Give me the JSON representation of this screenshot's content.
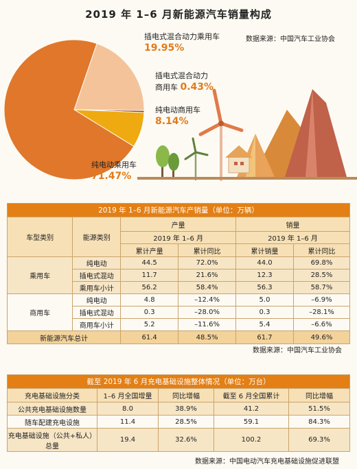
{
  "title": "2019 年 1–6 月新能源汽车销量构成",
  "pie_source": "数据来源：中国汽车工业协会",
  "chart_data": {
    "type": "pie",
    "title": "2019 年 1–6 月新能源汽车销量构成",
    "slices": [
      {
        "label": "纯电动乘用车",
        "pct_label": "71.47%",
        "value": 71.47,
        "color": "#e0772a"
      },
      {
        "label": "插电式混合动力乘用车",
        "pct_label": "19.95%",
        "value": 19.95,
        "color": "#f4c39a"
      },
      {
        "label": "插电式混合动力商用车",
        "pct_label": "0.43%",
        "value": 0.43,
        "color": "#8b3a2b"
      },
      {
        "label": "纯电动商用车",
        "pct_label": "8.14%",
        "value": 8.14,
        "color": "#eeaa10"
      }
    ]
  },
  "pie_labels": {
    "phev_passenger": "插电式混合动力乘用车",
    "phev_commercial_1": "插电式混合动力",
    "phev_commercial_2": "商用车",
    "bev_commercial": "纯电动商用车",
    "bev_passenger": "纯电动乘用车"
  },
  "table1": {
    "title": "2019 年 1–6 月新能源汽车产销量（单位：万辆）",
    "col_type": "车型类别",
    "col_energy": "能源类别",
    "production": "产量",
    "sales": "销量",
    "period": "2019 年 1–6 月",
    "cum_prod": "累计产量",
    "yoy": "累计同比",
    "cum_sales": "累计销量",
    "passenger": "乘用车",
    "commercial": "商用车",
    "rows_passenger": [
      [
        "纯电动",
        "44.5",
        "72.0%",
        "44.0",
        "69.8%"
      ],
      [
        "插电式混动",
        "11.7",
        "21.6%",
        "12.3",
        "28.5%"
      ],
      [
        "乘用车小计",
        "56.2",
        "58.4%",
        "56.3",
        "58.7%"
      ]
    ],
    "rows_commercial": [
      [
        "纯电动",
        "4.8",
        "–12.4%",
        "5.0",
        "–6.9%"
      ],
      [
        "插电式混动",
        "0.3",
        "–28.0%",
        "0.3",
        "–28.1%"
      ],
      [
        "商用车小计",
        "5.2",
        "–11.6%",
        "5.4",
        "–6.6%"
      ]
    ],
    "total": [
      "新能源汽车总计",
      "61.4",
      "48.5%",
      "61.7",
      "49.6%"
    ],
    "source": "数据来源：中国汽车工业协会"
  },
  "table2": {
    "title": "截至 2019 年 6 月充电基础设施整体情况（单位：万台）",
    "headers": [
      "充电基础设施分类",
      "1–6 月全国增量",
      "同比增幅",
      "截至 6 月全国累计",
      "同比增幅"
    ],
    "rows": [
      [
        "公共充电基础设施数量",
        "8.0",
        "38.9%",
        "41.2",
        "51.5%"
      ],
      [
        "随车配建充电设施",
        "11.4",
        "28.5%",
        "59.1",
        "84.3%"
      ],
      [
        "充电基础设施（公共+私人）总量",
        "19.4",
        "32.6%",
        "100.2",
        "69.3%"
      ]
    ],
    "source": "数据来源：中国电动汽车充电基础设施促进联盟"
  }
}
